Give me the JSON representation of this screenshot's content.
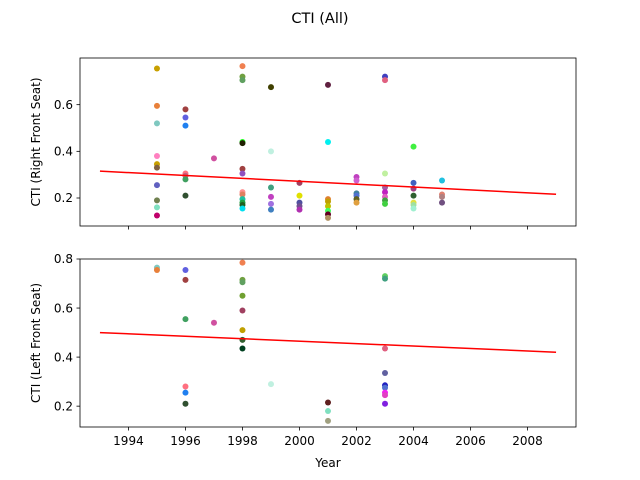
{
  "figure": {
    "title": "CTI (All)"
  },
  "chart_data": [
    {
      "type": "scatter",
      "ylabel": "CTI (Right Front Seat)",
      "xlabel": "",
      "xlim": [
        1992.3,
        2009.7
      ],
      "ylim": [
        0.08,
        0.8
      ],
      "x_ticks": [
        1994,
        1996,
        1998,
        2000,
        2002,
        2004,
        2006,
        2008
      ],
      "y_ticks": [
        0.2,
        0.4,
        0.6
      ],
      "y_tick_labels": [
        "0.2",
        "0.4",
        "0.6"
      ],
      "show_x_tick_labels": false,
      "trend": {
        "color": "#ff0000",
        "x": [
          1993,
          2009
        ],
        "y": [
          0.315,
          0.216
        ]
      },
      "points": [
        {
          "x": 1995,
          "y": 0.755,
          "color": "#c8a000"
        },
        {
          "x": 1995,
          "y": 0.595,
          "color": "#e8803a"
        },
        {
          "x": 1995,
          "y": 0.52,
          "color": "#7fc8c0"
        },
        {
          "x": 1995,
          "y": 0.38,
          "color": "#ff80c0"
        },
        {
          "x": 1995,
          "y": 0.345,
          "color": "#c8a000"
        },
        {
          "x": 1995,
          "y": 0.33,
          "color": "#806040"
        },
        {
          "x": 1995,
          "y": 0.255,
          "color": "#6060c0"
        },
        {
          "x": 1995,
          "y": 0.19,
          "color": "#708050"
        },
        {
          "x": 1995,
          "y": 0.16,
          "color": "#80e0c0"
        },
        {
          "x": 1995,
          "y": 0.125,
          "color": "#c0006a"
        },
        {
          "x": 1996,
          "y": 0.58,
          "color": "#a04040"
        },
        {
          "x": 1996,
          "y": 0.545,
          "color": "#6060e0"
        },
        {
          "x": 1996,
          "y": 0.51,
          "color": "#2080f0"
        },
        {
          "x": 1996,
          "y": 0.305,
          "color": "#ff7080"
        },
        {
          "x": 1996,
          "y": 0.295,
          "color": "#c06080"
        },
        {
          "x": 1996,
          "y": 0.28,
          "color": "#40a060"
        },
        {
          "x": 1996,
          "y": 0.21,
          "color": "#305030"
        },
        {
          "x": 1997,
          "y": 0.37,
          "color": "#d050a0"
        },
        {
          "x": 1998,
          "y": 0.765,
          "color": "#f08050"
        },
        {
          "x": 1998,
          "y": 0.72,
          "color": "#70a040"
        },
        {
          "x": 1998,
          "y": 0.705,
          "color": "#60a060"
        },
        {
          "x": 1998,
          "y": 0.44,
          "color": "#20ff20"
        },
        {
          "x": 1998,
          "y": 0.435,
          "color": "#202000"
        },
        {
          "x": 1998,
          "y": 0.325,
          "color": "#a04040"
        },
        {
          "x": 1998,
          "y": 0.305,
          "color": "#9050c0"
        },
        {
          "x": 1998,
          "y": 0.225,
          "color": "#ff9090"
        },
        {
          "x": 1998,
          "y": 0.215,
          "color": "#e08060"
        },
        {
          "x": 1998,
          "y": 0.195,
          "color": "#20c0a0"
        },
        {
          "x": 1998,
          "y": 0.18,
          "color": "#20a040"
        },
        {
          "x": 1998,
          "y": 0.17,
          "color": "#206020"
        },
        {
          "x": 1998,
          "y": 0.155,
          "color": "#00e0f0"
        },
        {
          "x": 1999,
          "y": 0.675,
          "color": "#404000"
        },
        {
          "x": 1999,
          "y": 0.4,
          "color": "#c0f0e0"
        },
        {
          "x": 1999,
          "y": 0.245,
          "color": "#40a080"
        },
        {
          "x": 1999,
          "y": 0.205,
          "color": "#c040c0"
        },
        {
          "x": 1999,
          "y": 0.175,
          "color": "#a070e0"
        },
        {
          "x": 1999,
          "y": 0.15,
          "color": "#4080c0"
        },
        {
          "x": 2000,
          "y": 0.265,
          "color": "#a04060"
        },
        {
          "x": 2000,
          "y": 0.21,
          "color": "#e0e000"
        },
        {
          "x": 2000,
          "y": 0.18,
          "color": "#5050a0"
        },
        {
          "x": 2000,
          "y": 0.165,
          "color": "#705090"
        },
        {
          "x": 2000,
          "y": 0.15,
          "color": "#b030b0"
        },
        {
          "x": 2001,
          "y": 0.685,
          "color": "#602040"
        },
        {
          "x": 2001,
          "y": 0.44,
          "color": "#00f0f0"
        },
        {
          "x": 2001,
          "y": 0.195,
          "color": "#e08030"
        },
        {
          "x": 2001,
          "y": 0.185,
          "color": "#c0a000"
        },
        {
          "x": 2001,
          "y": 0.165,
          "color": "#c0c000"
        },
        {
          "x": 2001,
          "y": 0.145,
          "color": "#40ff60"
        },
        {
          "x": 2001,
          "y": 0.13,
          "color": "#600020"
        },
        {
          "x": 2001,
          "y": 0.115,
          "color": "#b09060"
        },
        {
          "x": 2002,
          "y": 0.29,
          "color": "#c040c0"
        },
        {
          "x": 2002,
          "y": 0.275,
          "color": "#d060d0"
        },
        {
          "x": 2002,
          "y": 0.22,
          "color": "#4080a0"
        },
        {
          "x": 2002,
          "y": 0.21,
          "color": "#5070d0"
        },
        {
          "x": 2002,
          "y": 0.195,
          "color": "#606020"
        },
        {
          "x": 2002,
          "y": 0.18,
          "color": "#e0a040"
        },
        {
          "x": 2003,
          "y": 0.72,
          "color": "#4040c0"
        },
        {
          "x": 2003,
          "y": 0.705,
          "color": "#e06080"
        },
        {
          "x": 2003,
          "y": 0.305,
          "color": "#c0f0a0"
        },
        {
          "x": 2003,
          "y": 0.245,
          "color": "#a060a0"
        },
        {
          "x": 2003,
          "y": 0.225,
          "color": "#c020c0"
        },
        {
          "x": 2003,
          "y": 0.205,
          "color": "#e060c0"
        },
        {
          "x": 2003,
          "y": 0.19,
          "color": "#40a040"
        },
        {
          "x": 2003,
          "y": 0.175,
          "color": "#40d040"
        },
        {
          "x": 2004,
          "y": 0.42,
          "color": "#40f040"
        },
        {
          "x": 2004,
          "y": 0.265,
          "color": "#4060c0"
        },
        {
          "x": 2004,
          "y": 0.24,
          "color": "#a04080"
        },
        {
          "x": 2004,
          "y": 0.21,
          "color": "#306030"
        },
        {
          "x": 2004,
          "y": 0.18,
          "color": "#e0e040"
        },
        {
          "x": 2004,
          "y": 0.17,
          "color": "#a0e0a0"
        },
        {
          "x": 2004,
          "y": 0.155,
          "color": "#a0f0d0"
        },
        {
          "x": 2005,
          "y": 0.275,
          "color": "#20c0e0"
        },
        {
          "x": 2005,
          "y": 0.215,
          "color": "#e08070"
        },
        {
          "x": 2005,
          "y": 0.205,
          "color": "#b08080"
        },
        {
          "x": 2005,
          "y": 0.18,
          "color": "#705080"
        }
      ]
    },
    {
      "type": "scatter",
      "ylabel": "CTI (Left Front Seat)",
      "xlabel": "Year",
      "xlim": [
        1992.3,
        2009.7
      ],
      "ylim": [
        0.115,
        0.8
      ],
      "x_ticks": [
        1994,
        1996,
        1998,
        2000,
        2002,
        2004,
        2006,
        2008
      ],
      "x_tick_labels": [
        "1994",
        "1996",
        "1998",
        "2000",
        "2002",
        "2004",
        "2006",
        "2008"
      ],
      "y_ticks": [
        0.2,
        0.4,
        0.6,
        0.8
      ],
      "y_tick_labels": [
        "0.2",
        "0.4",
        "0.6",
        "0.8"
      ],
      "show_x_tick_labels": true,
      "trend": {
        "color": "#ff0000",
        "x": [
          1993,
          2009
        ],
        "y": [
          0.5,
          0.42
        ]
      },
      "points": [
        {
          "x": 1995,
          "y": 0.765,
          "color": "#7fc8c0"
        },
        {
          "x": 1995,
          "y": 0.755,
          "color": "#e8803a"
        },
        {
          "x": 1996,
          "y": 0.755,
          "color": "#6060e0"
        },
        {
          "x": 1996,
          "y": 0.715,
          "color": "#a04040"
        },
        {
          "x": 1996,
          "y": 0.555,
          "color": "#40a060"
        },
        {
          "x": 1996,
          "y": 0.28,
          "color": "#ff7080"
        },
        {
          "x": 1996,
          "y": 0.255,
          "color": "#2080f0"
        },
        {
          "x": 1996,
          "y": 0.21,
          "color": "#305030"
        },
        {
          "x": 1997,
          "y": 0.54,
          "color": "#d050a0"
        },
        {
          "x": 1998,
          "y": 0.785,
          "color": "#f08050"
        },
        {
          "x": 1998,
          "y": 0.715,
          "color": "#70a040"
        },
        {
          "x": 1998,
          "y": 0.705,
          "color": "#60a060"
        },
        {
          "x": 1998,
          "y": 0.65,
          "color": "#70a030"
        },
        {
          "x": 1998,
          "y": 0.59,
          "color": "#a04060"
        },
        {
          "x": 1998,
          "y": 0.51,
          "color": "#c0a000"
        },
        {
          "x": 1998,
          "y": 0.47,
          "color": "#306030"
        },
        {
          "x": 1998,
          "y": 0.435,
          "color": "#004020"
        },
        {
          "x": 1999,
          "y": 0.29,
          "color": "#c0f0e0"
        },
        {
          "x": 2001,
          "y": 0.215,
          "color": "#602020"
        },
        {
          "x": 2001,
          "y": 0.18,
          "color": "#80e0c0"
        },
        {
          "x": 2001,
          "y": 0.14,
          "color": "#a0a080"
        },
        {
          "x": 2003,
          "y": 0.73,
          "color": "#60d060"
        },
        {
          "x": 2003,
          "y": 0.72,
          "color": "#40a080"
        },
        {
          "x": 2003,
          "y": 0.435,
          "color": "#e06080"
        },
        {
          "x": 2003,
          "y": 0.335,
          "color": "#6060a0"
        },
        {
          "x": 2003,
          "y": 0.285,
          "color": "#2020c0"
        },
        {
          "x": 2003,
          "y": 0.275,
          "color": "#5070d0"
        },
        {
          "x": 2003,
          "y": 0.255,
          "color": "#f020f0"
        },
        {
          "x": 2003,
          "y": 0.245,
          "color": "#e040c0"
        },
        {
          "x": 2003,
          "y": 0.21,
          "color": "#8020e0"
        }
      ]
    }
  ]
}
